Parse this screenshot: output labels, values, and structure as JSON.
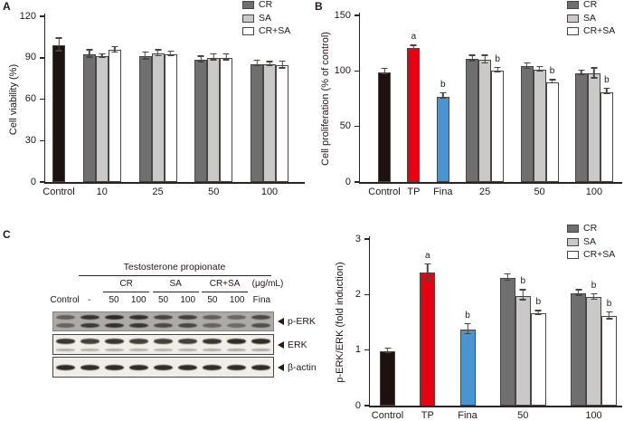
{
  "figure": {
    "panels": {
      "a": "A",
      "b": "B",
      "c": "C"
    }
  },
  "colors": {
    "control": "#1c1310",
    "tp_red": "#e60012",
    "fina_blue": "#4a94d2",
    "cr_gray": "#6f6f6f",
    "sa_gray": "#c9c9c7",
    "crsa_white": "#ffffff",
    "axis": "#2b2422",
    "bar_border": "#4a4543",
    "error_bar": "#4a4543",
    "blot_bg_perk": "#aeaaa6",
    "blot_bg_light": "#f1ede7",
    "band_dark": "#262220"
  },
  "chart_data": [
    {
      "id": "panel-a-chart",
      "panel": "A",
      "type": "bar",
      "title": "",
      "xlabel": "",
      "ylabel": "Cell viability (%)",
      "ylim": [
        0,
        120
      ],
      "yticks": [
        0,
        30,
        60,
        90,
        120
      ],
      "legend": [
        {
          "label": "CR",
          "colorKey": "cr_gray"
        },
        {
          "label": "SA",
          "colorKey": "sa_gray"
        },
        {
          "label": "CR+SA",
          "colorKey": "crsa_white"
        }
      ],
      "groups": [
        {
          "label": "Control",
          "bars": [
            {
              "series": "Control",
              "value": 99,
              "err": 5,
              "colorKey": "control",
              "sig": ""
            }
          ]
        },
        {
          "label": "10",
          "bars": [
            {
              "series": "CR",
              "value": 92.5,
              "err": 3,
              "colorKey": "cr_gray",
              "sig": ""
            },
            {
              "series": "SA",
              "value": 91,
              "err": 1.5,
              "colorKey": "sa_gray",
              "sig": ""
            },
            {
              "series": "CR+SA",
              "value": 95.5,
              "err": 2.5,
              "colorKey": "crsa_white",
              "sig": ""
            }
          ]
        },
        {
          "label": "25",
          "bars": [
            {
              "series": "CR",
              "value": 91,
              "err": 3,
              "colorKey": "cr_gray",
              "sig": ""
            },
            {
              "series": "SA",
              "value": 93,
              "err": 2.5,
              "colorKey": "sa_gray",
              "sig": ""
            },
            {
              "series": "CR+SA",
              "value": 92.5,
              "err": 2,
              "colorKey": "crsa_white",
              "sig": ""
            }
          ]
        },
        {
          "label": "50",
          "bars": [
            {
              "series": "CR",
              "value": 88.5,
              "err": 2.5,
              "colorKey": "cr_gray",
              "sig": ""
            },
            {
              "series": "SA",
              "value": 90,
              "err": 2.5,
              "colorKey": "sa_gray",
              "sig": ""
            },
            {
              "series": "CR+SA",
              "value": 90,
              "err": 2.5,
              "colorKey": "crsa_white",
              "sig": ""
            }
          ]
        },
        {
          "label": "100",
          "bars": [
            {
              "series": "CR",
              "value": 85.5,
              "err": 2.5,
              "colorKey": "cr_gray",
              "sig": ""
            },
            {
              "series": "SA",
              "value": 85,
              "err": 2,
              "colorKey": "sa_gray",
              "sig": ""
            },
            {
              "series": "CR+SA",
              "value": 84.5,
              "err": 3,
              "colorKey": "crsa_white",
              "sig": ""
            }
          ]
        }
      ]
    },
    {
      "id": "panel-b-chart",
      "panel": "B",
      "type": "bar",
      "title": "",
      "xlabel": "",
      "ylabel": "Cell proliferation (% of control)",
      "ylim": [
        0,
        150
      ],
      "yticks": [
        0,
        50,
        100,
        150
      ],
      "legend": [
        {
          "label": "CR",
          "colorKey": "cr_gray"
        },
        {
          "label": "SA",
          "colorKey": "sa_gray"
        },
        {
          "label": "CR+SA",
          "colorKey": "crsa_white"
        }
      ],
      "groups": [
        {
          "label": "Control",
          "bars": [
            {
              "series": "Control",
              "value": 99,
              "err": 3,
              "colorKey": "control",
              "sig": ""
            }
          ]
        },
        {
          "label": "TP",
          "bars": [
            {
              "series": "TP",
              "value": 121,
              "err": 2,
              "colorKey": "tp_red",
              "sig": "a"
            }
          ]
        },
        {
          "label": "Fina",
          "bars": [
            {
              "series": "Fina",
              "value": 77,
              "err": 3,
              "colorKey": "fina_blue",
              "sig": "b"
            }
          ]
        },
        {
          "label": "25",
          "bars": [
            {
              "series": "CR",
              "value": 111,
              "err": 3,
              "colorKey": "cr_gray",
              "sig": ""
            },
            {
              "series": "SA",
              "value": 110,
              "err": 4,
              "colorKey": "sa_gray",
              "sig": ""
            },
            {
              "series": "CR+SA",
              "value": 100.5,
              "err": 2.5,
              "colorKey": "crsa_white",
              "sig": "b"
            }
          ]
        },
        {
          "label": "50",
          "bars": [
            {
              "series": "CR",
              "value": 104,
              "err": 3,
              "colorKey": "cr_gray",
              "sig": ""
            },
            {
              "series": "SA",
              "value": 101,
              "err": 2.5,
              "colorKey": "sa_gray",
              "sig": ""
            },
            {
              "series": "CR+SA",
              "value": 90,
              "err": 2,
              "colorKey": "crsa_white",
              "sig": "b"
            }
          ]
        },
        {
          "label": "100",
          "bars": [
            {
              "series": "CR",
              "value": 98,
              "err": 2.5,
              "colorKey": "cr_gray",
              "sig": ""
            },
            {
              "series": "SA",
              "value": 97.5,
              "err": 5,
              "colorKey": "sa_gray",
              "sig": ""
            },
            {
              "series": "CR+SA",
              "value": 81,
              "err": 3,
              "colorKey": "crsa_white",
              "sig": "b"
            }
          ]
        }
      ]
    },
    {
      "id": "panel-c-chart",
      "panel": "C",
      "type": "bar",
      "title": "",
      "xlabel": "",
      "ylabel": "p-ERK/ERK (fold induction)",
      "ylim": [
        0,
        3
      ],
      "yticks": [
        0,
        1,
        2,
        3
      ],
      "legend": [
        {
          "label": "CR",
          "colorKey": "cr_gray"
        },
        {
          "label": "SA",
          "colorKey": "sa_gray"
        },
        {
          "label": "CR+SA",
          "colorKey": "crsa_white"
        }
      ],
      "groups": [
        {
          "label": "Control",
          "bars": [
            {
              "series": "Control",
              "value": 0.98,
              "err": 0.05,
              "colorKey": "control",
              "sig": ""
            }
          ]
        },
        {
          "label": "TP",
          "bars": [
            {
              "series": "TP",
              "value": 2.4,
              "err": 0.15,
              "colorKey": "tp_red",
              "sig": "a"
            }
          ]
        },
        {
          "label": "Fina",
          "bars": [
            {
              "series": "Fina",
              "value": 1.37,
              "err": 0.1,
              "colorKey": "fina_blue",
              "sig": "b"
            }
          ]
        },
        {
          "label": "50",
          "bars": [
            {
              "series": "CR",
              "value": 2.3,
              "err": 0.07,
              "colorKey": "cr_gray",
              "sig": ""
            },
            {
              "series": "SA",
              "value": 1.98,
              "err": 0.1,
              "colorKey": "sa_gray",
              "sig": "b"
            },
            {
              "series": "CR+SA",
              "value": 1.66,
              "err": 0.05,
              "colorKey": "crsa_white",
              "sig": "b"
            }
          ]
        },
        {
          "label": "100",
          "bars": [
            {
              "series": "CR",
              "value": 2.02,
              "err": 0.06,
              "colorKey": "cr_gray",
              "sig": ""
            },
            {
              "series": "SA",
              "value": 1.95,
              "err": 0.06,
              "colorKey": "sa_gray",
              "sig": "b"
            },
            {
              "series": "CR+SA",
              "value": 1.61,
              "err": 0.07,
              "colorKey": "crsa_white",
              "sig": "b"
            }
          ]
        }
      ]
    }
  ],
  "blot": {
    "treatment_header": "Testosterone propionate",
    "unit_label": "(μg/mL)",
    "subgroups": [
      "CR",
      "SA",
      "CR+SA"
    ],
    "lane_labels": [
      "Control",
      "-",
      "50",
      "100",
      "50",
      "100",
      "50",
      "100",
      "Fina"
    ],
    "rows": [
      {
        "label": "p-ERK",
        "style": "doublet",
        "intensities": [
          0.55,
          0.88,
          0.95,
          0.9,
          0.75,
          0.78,
          0.55,
          0.5,
          0.72
        ]
      },
      {
        "label": "ERK",
        "style": "main-plus-faint",
        "intensities": [
          0.9,
          0.85,
          0.9,
          0.85,
          0.85,
          0.85,
          0.9,
          0.95,
          0.95
        ]
      },
      {
        "label": "β-actin",
        "style": "single",
        "intensities": [
          0.95,
          0.95,
          0.95,
          0.95,
          0.95,
          0.95,
          0.95,
          0.95,
          0.95
        ]
      }
    ]
  }
}
